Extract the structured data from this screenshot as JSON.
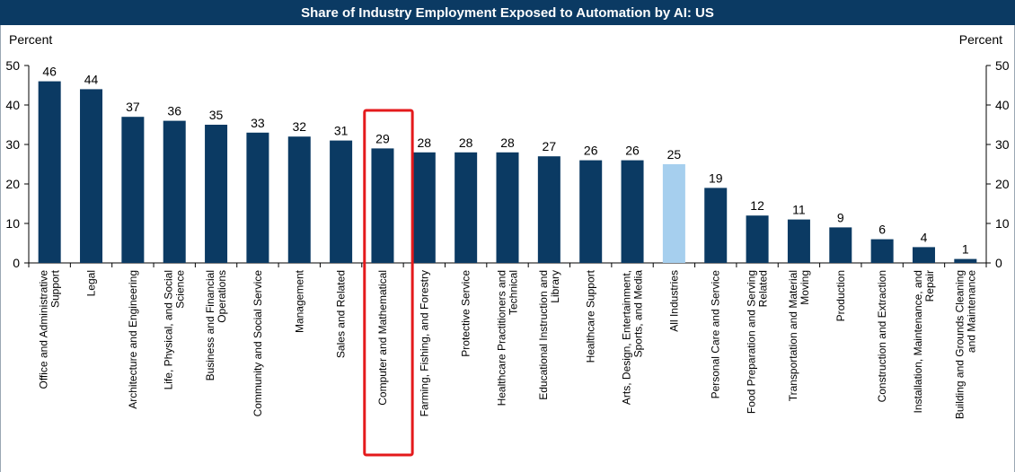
{
  "chart_data": {
    "type": "bar",
    "title": "Share of Industry Employment Exposed to Automation by AI: US",
    "ylabel_left": "Percent",
    "ylabel_right": "Percent",
    "ylim": [
      0,
      50
    ],
    "yticks": [
      0,
      10,
      20,
      30,
      40,
      50
    ],
    "grid": false,
    "categories": [
      [
        "Office and Administrative",
        "Support"
      ],
      [
        "Legal"
      ],
      [
        "Architecture and Engineering"
      ],
      [
        "Life, Physical, and Social",
        "Science"
      ],
      [
        "Business and Financial",
        "Operations"
      ],
      [
        "Community and Social Service"
      ],
      [
        "Management"
      ],
      [
        "Sales and Related"
      ],
      [
        "Computer and Mathematical"
      ],
      [
        "Farming, Fishing, and Forestry"
      ],
      [
        "Protective Service"
      ],
      [
        "Healthcare Practitioners and",
        "Technical"
      ],
      [
        "Educational Instruction and",
        "Library"
      ],
      [
        "Healthcare Support"
      ],
      [
        "Arts, Design, Entertainment,",
        "Sports, and Media"
      ],
      [
        "All Industries"
      ],
      [
        "Personal Care and Service"
      ],
      [
        "Food Preparation and Serving",
        "Related"
      ],
      [
        "Transportation and Material",
        "Moving"
      ],
      [
        "Production"
      ],
      [
        "Construction and Extraction"
      ],
      [
        "Installation, Maintenance, and",
        "Repair"
      ],
      [
        "Building and Grounds Cleaning",
        "and Maintenance"
      ]
    ],
    "values": [
      46,
      44,
      37,
      36,
      35,
      33,
      32,
      31,
      29,
      28,
      28,
      28,
      27,
      26,
      26,
      25,
      19,
      12,
      11,
      9,
      6,
      4,
      1
    ],
    "data_labels": [
      "46",
      "44",
      "37",
      "36",
      "35",
      "33",
      "32",
      "31",
      "29",
      "28",
      "28",
      "28",
      "27",
      "26",
      "26",
      "25",
      "19",
      "12",
      "11",
      "9",
      "6",
      "4",
      "1"
    ],
    "highlight_index": 8,
    "emphasis_index": 15
  },
  "colors": {
    "bar": "#0b3a63",
    "bar_emphasis": "#a6cfee",
    "highlight_box": "#e41a1c",
    "title_bg": "#0b3a63"
  }
}
